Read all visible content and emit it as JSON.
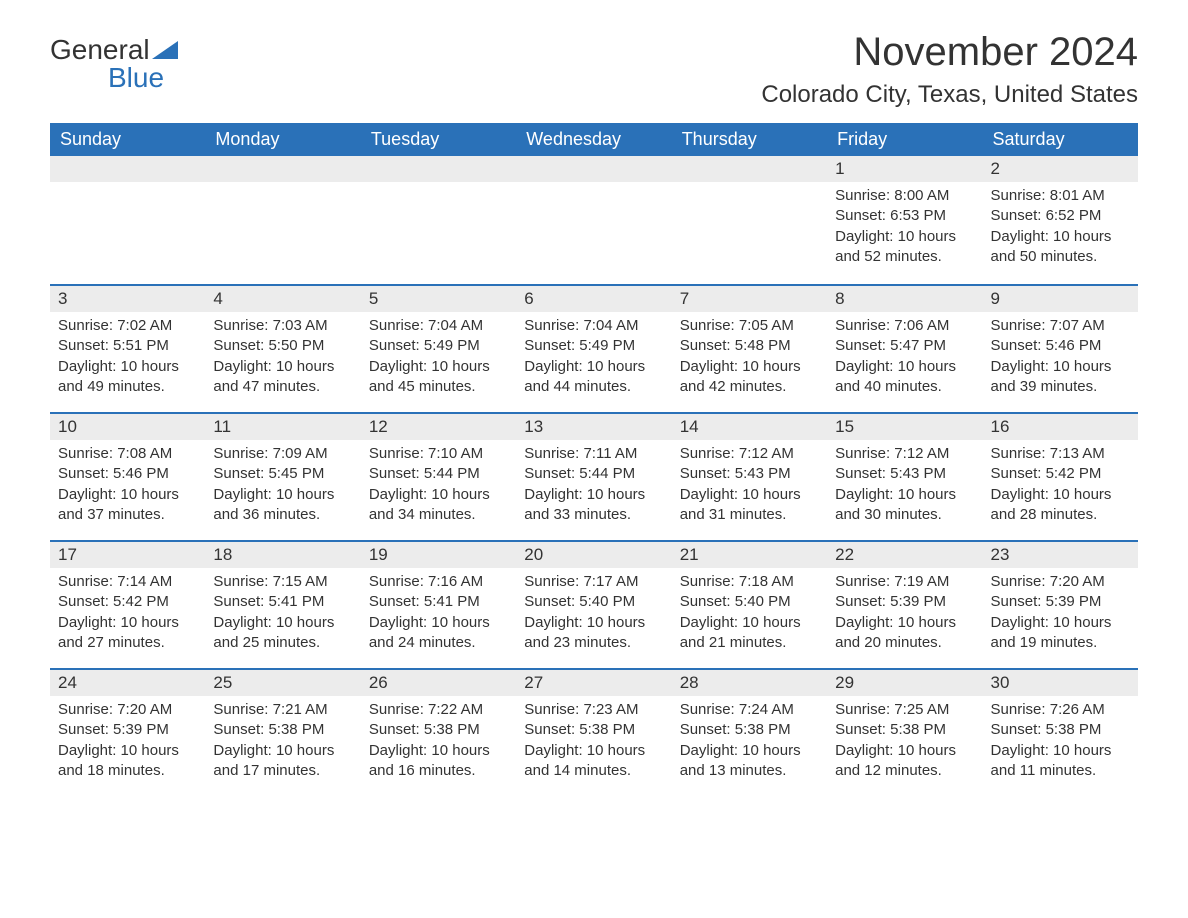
{
  "brand": {
    "word1": "General",
    "word2": "Blue",
    "tri_color": "#2a71b8"
  },
  "title": "November 2024",
  "location": "Colorado City, Texas, United States",
  "colors": {
    "header_bg": "#2a71b8",
    "header_fg": "#ffffff",
    "daynum_bg": "#ececec",
    "daynum_border": "#2a71b8",
    "text": "#333333",
    "page_bg": "#ffffff"
  },
  "weekdays": [
    "Sunday",
    "Monday",
    "Tuesday",
    "Wednesday",
    "Thursday",
    "Friday",
    "Saturday"
  ],
  "weeks": [
    [
      null,
      null,
      null,
      null,
      null,
      {
        "n": "1",
        "sunrise": "8:00 AM",
        "sunset": "6:53 PM",
        "daylight": "10 hours and 52 minutes."
      },
      {
        "n": "2",
        "sunrise": "8:01 AM",
        "sunset": "6:52 PM",
        "daylight": "10 hours and 50 minutes."
      }
    ],
    [
      {
        "n": "3",
        "sunrise": "7:02 AM",
        "sunset": "5:51 PM",
        "daylight": "10 hours and 49 minutes."
      },
      {
        "n": "4",
        "sunrise": "7:03 AM",
        "sunset": "5:50 PM",
        "daylight": "10 hours and 47 minutes."
      },
      {
        "n": "5",
        "sunrise": "7:04 AM",
        "sunset": "5:49 PM",
        "daylight": "10 hours and 45 minutes."
      },
      {
        "n": "6",
        "sunrise": "7:04 AM",
        "sunset": "5:49 PM",
        "daylight": "10 hours and 44 minutes."
      },
      {
        "n": "7",
        "sunrise": "7:05 AM",
        "sunset": "5:48 PM",
        "daylight": "10 hours and 42 minutes."
      },
      {
        "n": "8",
        "sunrise": "7:06 AM",
        "sunset": "5:47 PM",
        "daylight": "10 hours and 40 minutes."
      },
      {
        "n": "9",
        "sunrise": "7:07 AM",
        "sunset": "5:46 PM",
        "daylight": "10 hours and 39 minutes."
      }
    ],
    [
      {
        "n": "10",
        "sunrise": "7:08 AM",
        "sunset": "5:46 PM",
        "daylight": "10 hours and 37 minutes."
      },
      {
        "n": "11",
        "sunrise": "7:09 AM",
        "sunset": "5:45 PM",
        "daylight": "10 hours and 36 minutes."
      },
      {
        "n": "12",
        "sunrise": "7:10 AM",
        "sunset": "5:44 PM",
        "daylight": "10 hours and 34 minutes."
      },
      {
        "n": "13",
        "sunrise": "7:11 AM",
        "sunset": "5:44 PM",
        "daylight": "10 hours and 33 minutes."
      },
      {
        "n": "14",
        "sunrise": "7:12 AM",
        "sunset": "5:43 PM",
        "daylight": "10 hours and 31 minutes."
      },
      {
        "n": "15",
        "sunrise": "7:12 AM",
        "sunset": "5:43 PM",
        "daylight": "10 hours and 30 minutes."
      },
      {
        "n": "16",
        "sunrise": "7:13 AM",
        "sunset": "5:42 PM",
        "daylight": "10 hours and 28 minutes."
      }
    ],
    [
      {
        "n": "17",
        "sunrise": "7:14 AM",
        "sunset": "5:42 PM",
        "daylight": "10 hours and 27 minutes."
      },
      {
        "n": "18",
        "sunrise": "7:15 AM",
        "sunset": "5:41 PM",
        "daylight": "10 hours and 25 minutes."
      },
      {
        "n": "19",
        "sunrise": "7:16 AM",
        "sunset": "5:41 PM",
        "daylight": "10 hours and 24 minutes."
      },
      {
        "n": "20",
        "sunrise": "7:17 AM",
        "sunset": "5:40 PM",
        "daylight": "10 hours and 23 minutes."
      },
      {
        "n": "21",
        "sunrise": "7:18 AM",
        "sunset": "5:40 PM",
        "daylight": "10 hours and 21 minutes."
      },
      {
        "n": "22",
        "sunrise": "7:19 AM",
        "sunset": "5:39 PM",
        "daylight": "10 hours and 20 minutes."
      },
      {
        "n": "23",
        "sunrise": "7:20 AM",
        "sunset": "5:39 PM",
        "daylight": "10 hours and 19 minutes."
      }
    ],
    [
      {
        "n": "24",
        "sunrise": "7:20 AM",
        "sunset": "5:39 PM",
        "daylight": "10 hours and 18 minutes."
      },
      {
        "n": "25",
        "sunrise": "7:21 AM",
        "sunset": "5:38 PM",
        "daylight": "10 hours and 17 minutes."
      },
      {
        "n": "26",
        "sunrise": "7:22 AM",
        "sunset": "5:38 PM",
        "daylight": "10 hours and 16 minutes."
      },
      {
        "n": "27",
        "sunrise": "7:23 AM",
        "sunset": "5:38 PM",
        "daylight": "10 hours and 14 minutes."
      },
      {
        "n": "28",
        "sunrise": "7:24 AM",
        "sunset": "5:38 PM",
        "daylight": "10 hours and 13 minutes."
      },
      {
        "n": "29",
        "sunrise": "7:25 AM",
        "sunset": "5:38 PM",
        "daylight": "10 hours and 12 minutes."
      },
      {
        "n": "30",
        "sunrise": "7:26 AM",
        "sunset": "5:38 PM",
        "daylight": "10 hours and 11 minutes."
      }
    ]
  ],
  "labels": {
    "sunrise": "Sunrise: ",
    "sunset": "Sunset: ",
    "daylight": "Daylight: "
  }
}
